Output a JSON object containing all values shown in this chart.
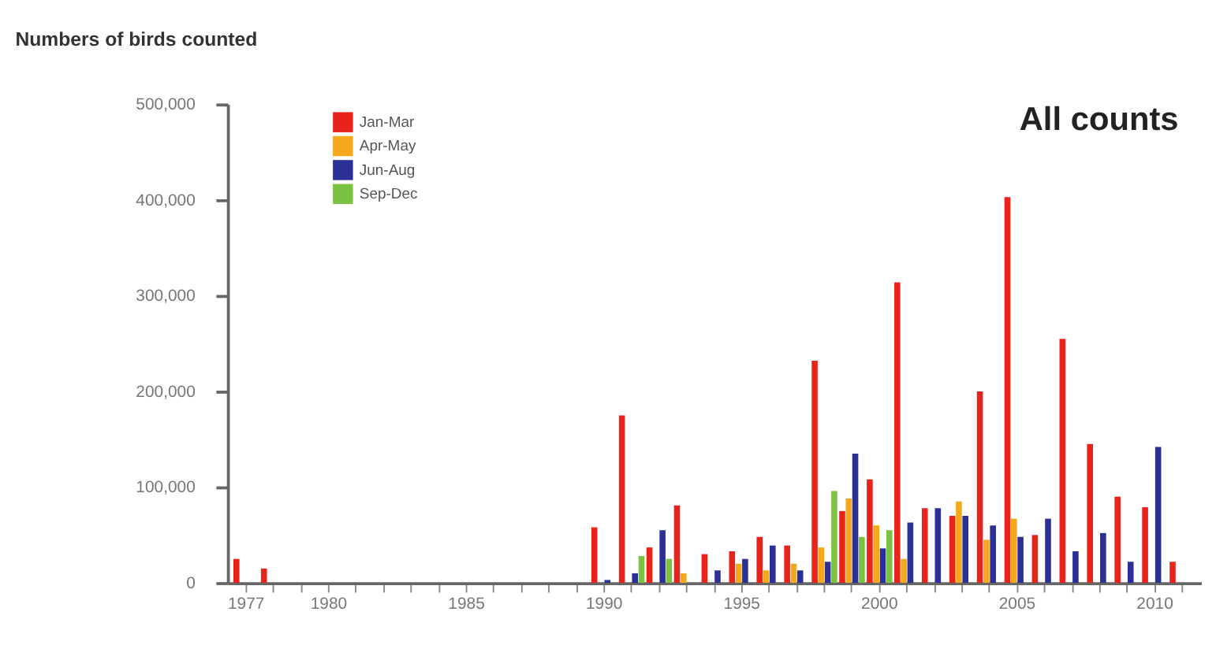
{
  "chart_data": {
    "type": "bar",
    "title": "Numbers of birds counted",
    "annotations": [
      "All counts"
    ],
    "categories": [
      "1977",
      null,
      null,
      "1980",
      null,
      null,
      null,
      null,
      "1985",
      null,
      null,
      null,
      null,
      "1990",
      null,
      null,
      null,
      null,
      "1995",
      null,
      null,
      null,
      null,
      "2000",
      null,
      null,
      null,
      null,
      "2005",
      null,
      null,
      null,
      null,
      "2010",
      null
    ],
    "series": [
      {
        "name": "Jan-Mar",
        "color": "#e8231c",
        "values": [
          25000,
          15000,
          null,
          null,
          null,
          null,
          null,
          null,
          null,
          null,
          null,
          null,
          null,
          58000,
          175000,
          37000,
          81000,
          30000,
          33000,
          48000,
          39000,
          232000,
          75000,
          108000,
          314000,
          78000,
          70000,
          200000,
          403000,
          50000,
          255000,
          145000,
          90000,
          79000,
          22000
        ]
      },
      {
        "name": "Apr-May",
        "color": "#f5a81c",
        "values": [
          null,
          null,
          null,
          null,
          null,
          null,
          null,
          null,
          null,
          null,
          null,
          null,
          null,
          null,
          null,
          null,
          10000,
          null,
          20000,
          13000,
          20000,
          37000,
          88000,
          60000,
          25000,
          null,
          85000,
          45000,
          67000,
          null,
          null,
          null,
          null,
          null,
          null
        ]
      },
      {
        "name": "Jun-Aug",
        "color": "#2b2f96",
        "values": [
          null,
          null,
          null,
          null,
          null,
          null,
          null,
          null,
          null,
          null,
          null,
          null,
          null,
          3000,
          10000,
          55000,
          null,
          13000,
          25000,
          39000,
          13000,
          22000,
          135000,
          36000,
          63000,
          78000,
          70000,
          60000,
          48000,
          67000,
          33000,
          52000,
          22000,
          142000,
          null
        ]
      },
      {
        "name": "Sep-Dec",
        "color": "#7cc242",
        "values": [
          null,
          null,
          null,
          null,
          null,
          null,
          null,
          null,
          null,
          null,
          null,
          null,
          null,
          null,
          28000,
          25000,
          null,
          null,
          null,
          null,
          null,
          96000,
          48000,
          55000,
          null,
          null,
          null,
          null,
          null,
          null,
          null,
          null,
          null,
          null,
          null
        ]
      }
    ],
    "ylim": [
      0,
      500000
    ],
    "yticks": [
      0,
      {
        "value": 100000,
        "label": "100,000"
      },
      {
        "value": 200000,
        "label": "200,000"
      },
      {
        "value": 300000,
        "label": "300,000"
      },
      {
        "value": 400000,
        "label": "400,000"
      },
      {
        "value": 500000,
        "label": "500,000"
      }
    ],
    "grid": false,
    "legend": "top left"
  }
}
